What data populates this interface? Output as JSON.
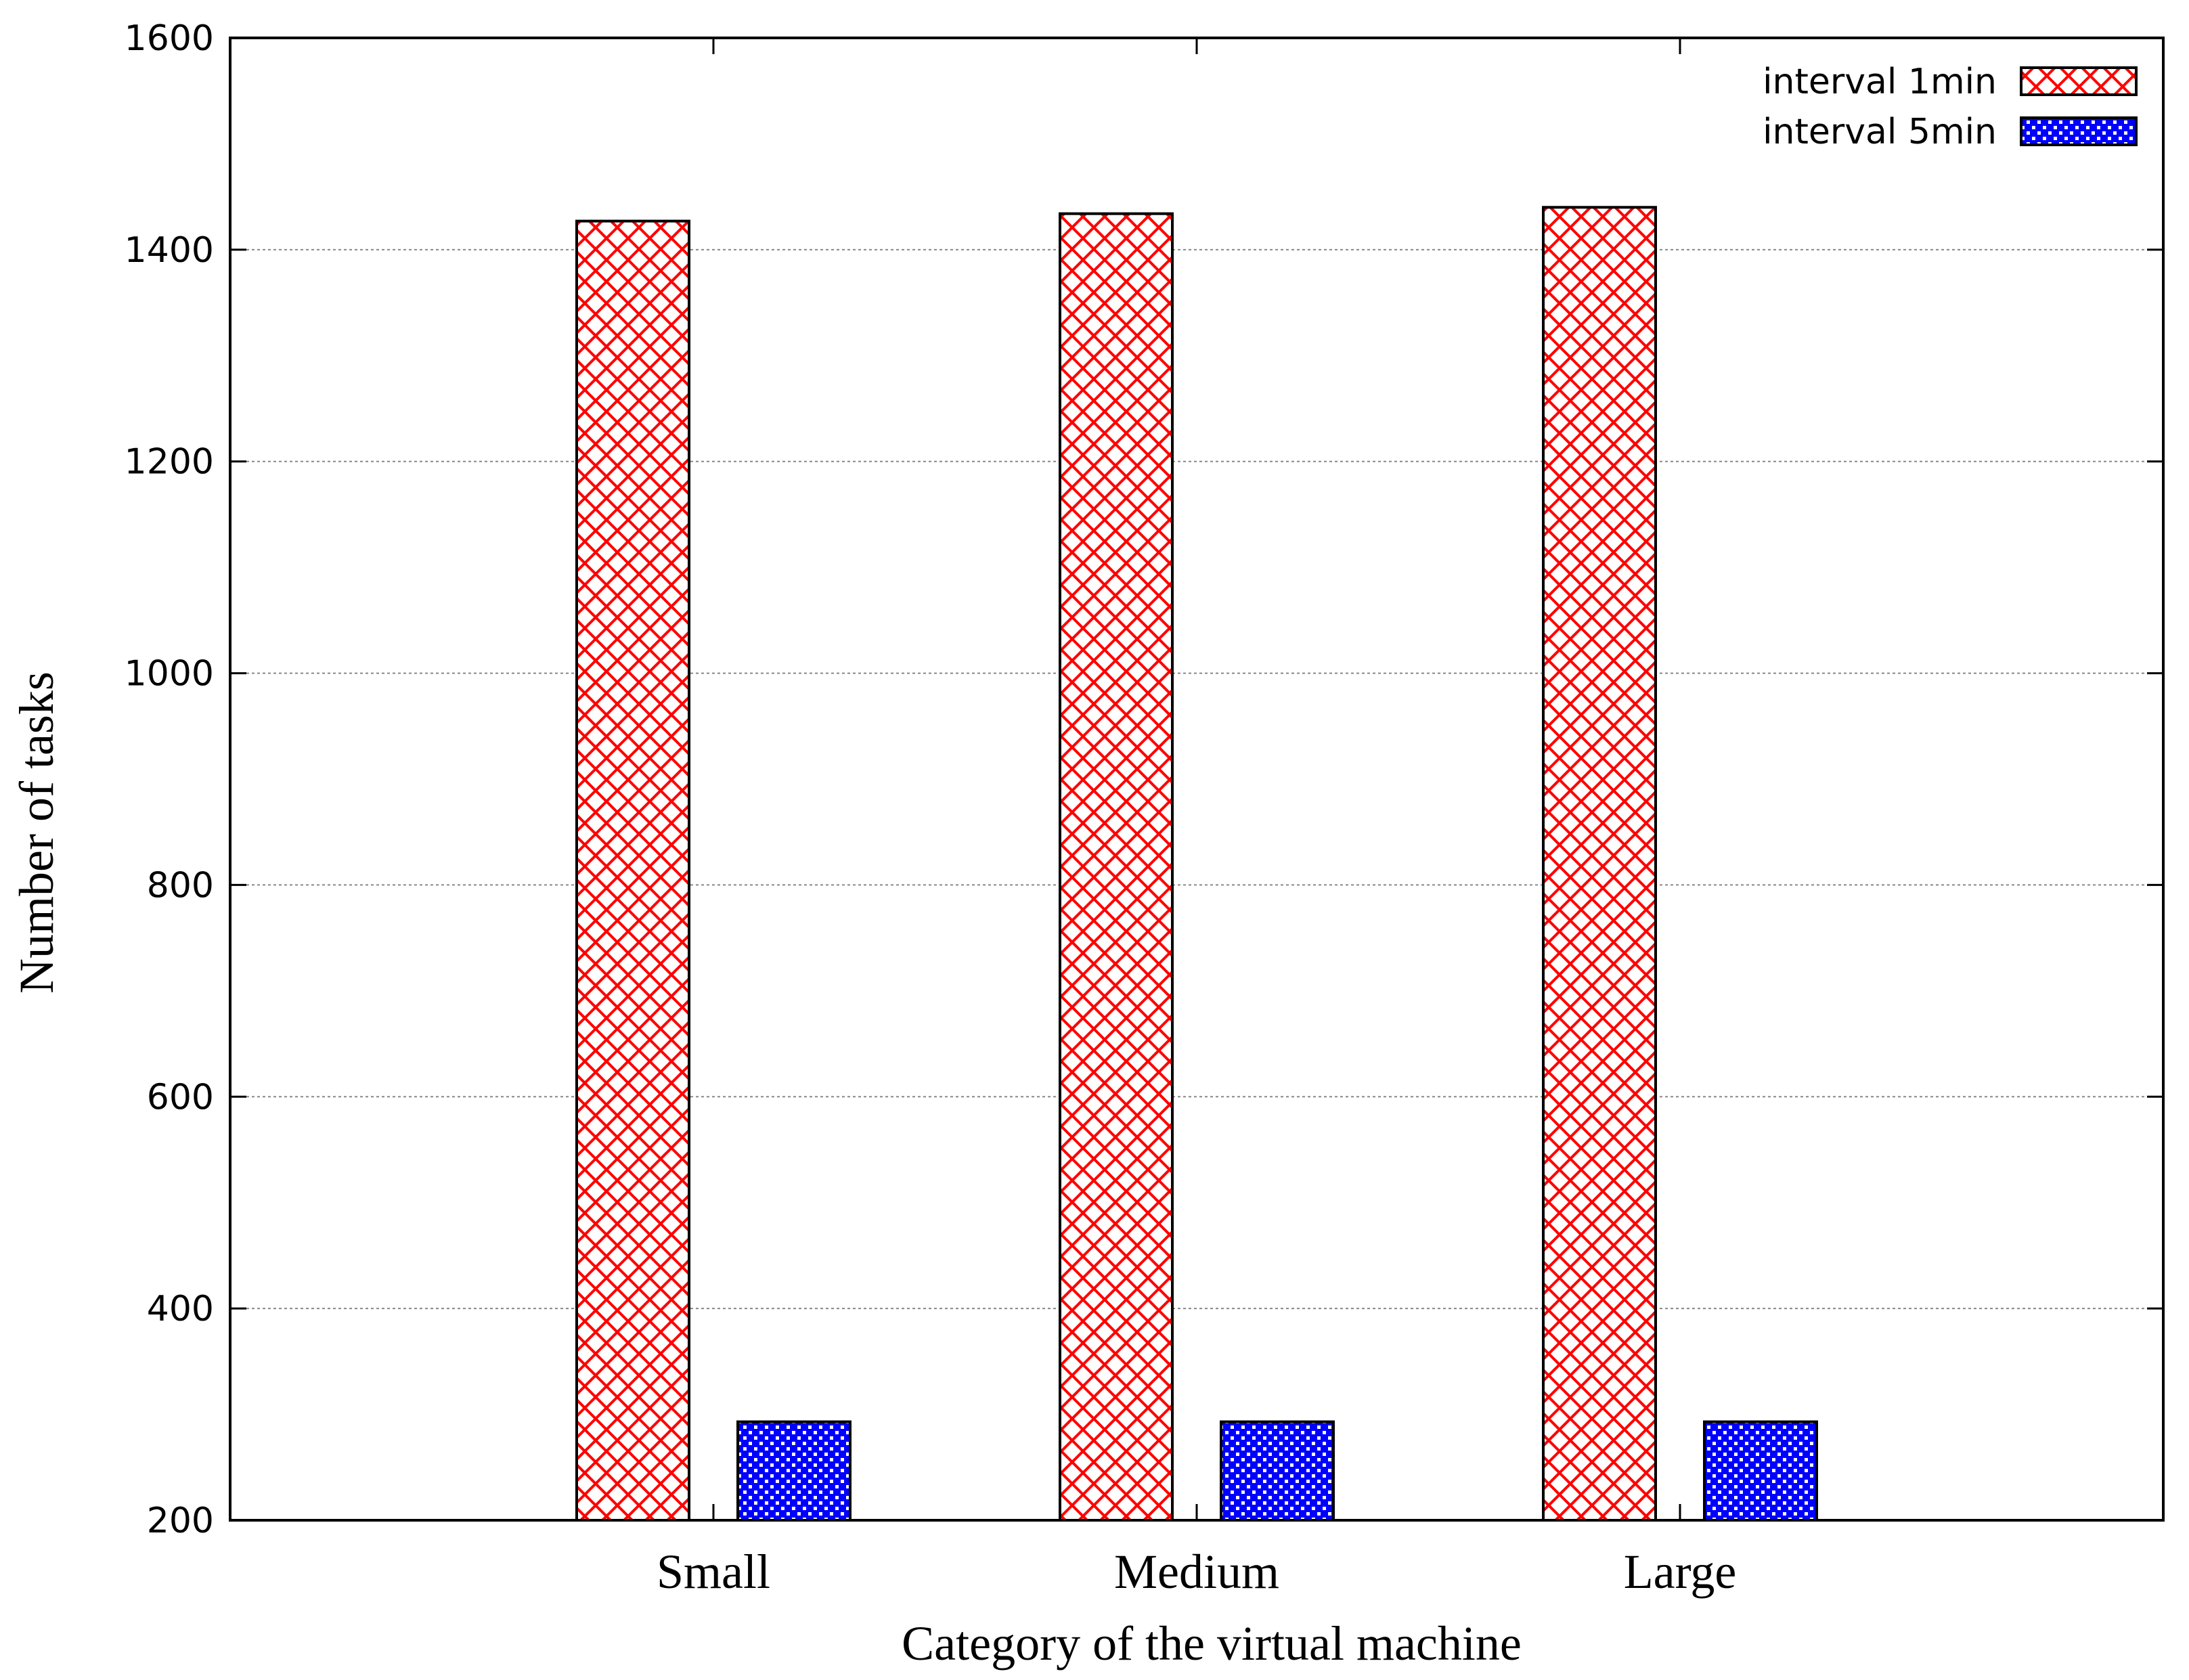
{
  "chart_data": {
    "type": "bar",
    "categories": [
      "Small",
      "Medium",
      "Large"
    ],
    "series": [
      {
        "name": "interval 1min",
        "values": [
          1427,
          1434,
          1440
        ],
        "color": "#ff0000",
        "pattern": "crosshatch"
      },
      {
        "name": "interval 5min",
        "values": [
          293,
          293,
          293
        ],
        "color": "#0000ff",
        "pattern": "checker"
      }
    ],
    "xlabel": "Category of the virtual machine",
    "ylabel": "Number of tasks",
    "ylim": [
      200,
      1600
    ],
    "yticks": [
      200,
      400,
      600,
      800,
      1000,
      1200,
      1400,
      1600
    ],
    "grid": true,
    "legend": "top-right"
  }
}
